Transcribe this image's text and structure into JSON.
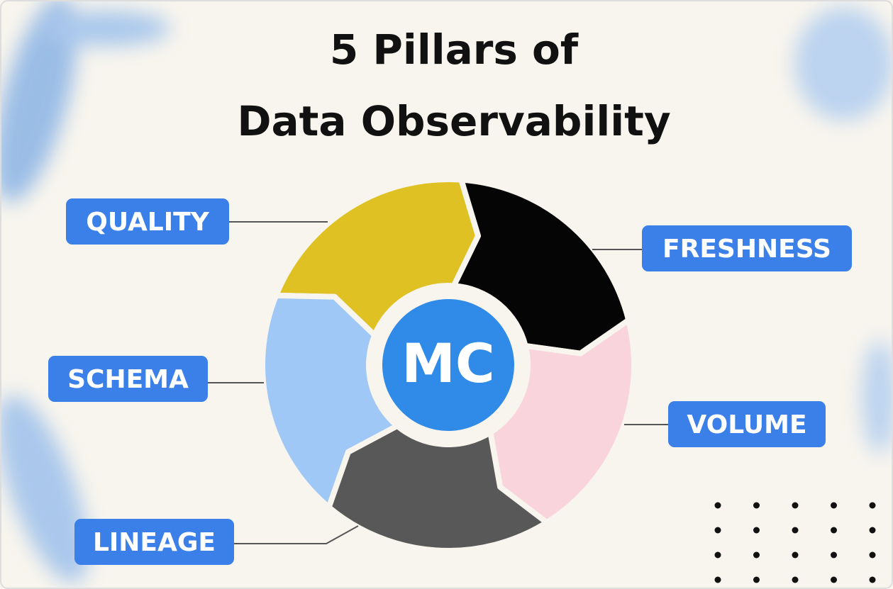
{
  "title": [
    "5 Pillars of",
    "Data Observability"
  ],
  "center": "MC",
  "pillars": [
    {
      "label": "QUALITY",
      "color": "#e0c123"
    },
    {
      "label": "FRESHNESS",
      "color": "#050505"
    },
    {
      "label": "VOLUME",
      "color": "#f9d4dc"
    },
    {
      "label": "LINEAGE",
      "color": "#585858"
    },
    {
      "label": "SCHEMA",
      "color": "#9fc8f6"
    }
  ]
}
